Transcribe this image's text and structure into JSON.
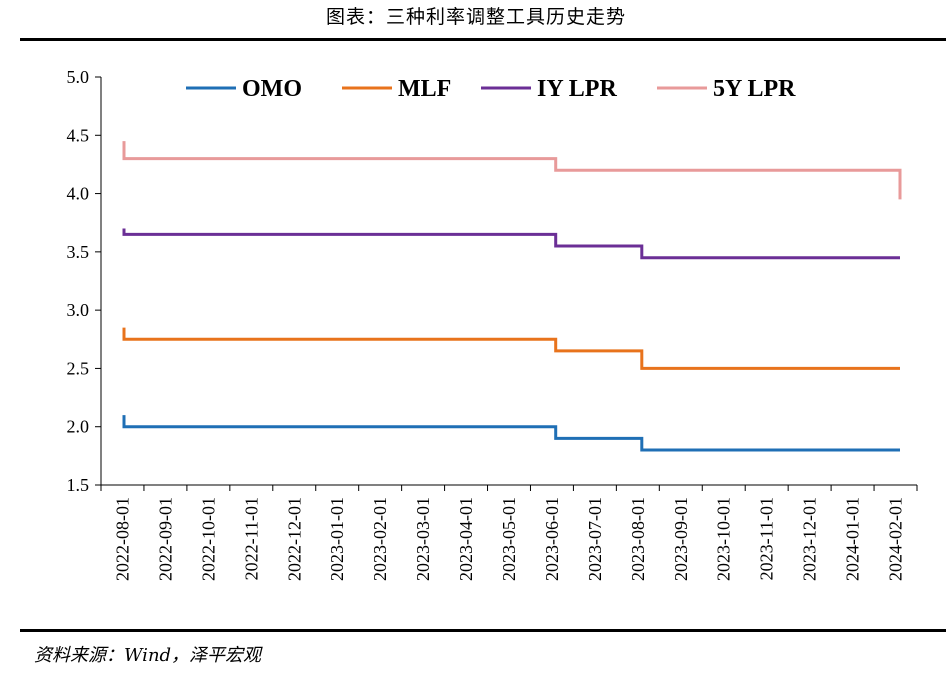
{
  "header": {
    "title": "图表：三种利率调整工具历史走势"
  },
  "footer": {
    "source": "资料来源：Wind，泽平宏观"
  },
  "chart_data": {
    "type": "line",
    "step": true,
    "ylim": [
      1.5,
      5.0
    ],
    "yticks": [
      "1.5",
      "2.0",
      "2.5",
      "3.0",
      "3.5",
      "4.0",
      "4.5",
      "5.0"
    ],
    "x_range": [
      "2022-08-01",
      "2024-02-20"
    ],
    "xticks": [
      "2022-08-01",
      "2022-09-01",
      "2022-10-01",
      "2022-11-01",
      "2022-12-01",
      "2023-01-01",
      "2023-02-01",
      "2023-03-01",
      "2023-04-01",
      "2023-05-01",
      "2023-06-01",
      "2023-07-01",
      "2023-08-01",
      "2023-09-01",
      "2023-10-01",
      "2023-11-01",
      "2023-12-01",
      "2024-01-01",
      "2024-02-01"
    ],
    "grid": false,
    "legend_position": "top",
    "series": [
      {
        "name": "OMO",
        "color": "#1f6fb5",
        "points": [
          [
            "2022-08-01",
            2.1
          ],
          [
            "2022-08-01",
            2.0
          ],
          [
            "2023-06-13",
            2.0
          ],
          [
            "2023-06-13",
            1.9
          ],
          [
            "2023-08-15",
            1.9
          ],
          [
            "2023-08-15",
            1.8
          ],
          [
            "2024-02-20",
            1.8
          ]
        ]
      },
      {
        "name": "MLF",
        "color": "#e8731c",
        "points": [
          [
            "2022-08-01",
            2.85
          ],
          [
            "2022-08-01",
            2.75
          ],
          [
            "2023-06-13",
            2.75
          ],
          [
            "2023-06-13",
            2.65
          ],
          [
            "2023-08-15",
            2.65
          ],
          [
            "2023-08-15",
            2.5
          ],
          [
            "2024-02-20",
            2.5
          ]
        ]
      },
      {
        "name": "IY LPR",
        "color": "#6b2f96",
        "points": [
          [
            "2022-08-01",
            3.7
          ],
          [
            "2022-08-01",
            3.65
          ],
          [
            "2023-06-13",
            3.65
          ],
          [
            "2023-06-13",
            3.55
          ],
          [
            "2023-08-15",
            3.55
          ],
          [
            "2023-08-15",
            3.45
          ],
          [
            "2024-02-20",
            3.45
          ]
        ]
      },
      {
        "name": "5Y LPR",
        "color": "#e89a9a",
        "points": [
          [
            "2022-08-01",
            4.45
          ],
          [
            "2022-08-01",
            4.3
          ],
          [
            "2023-06-13",
            4.3
          ],
          [
            "2023-06-13",
            4.2
          ],
          [
            "2024-02-20",
            4.2
          ],
          [
            "2024-02-20",
            3.95
          ]
        ]
      }
    ]
  }
}
